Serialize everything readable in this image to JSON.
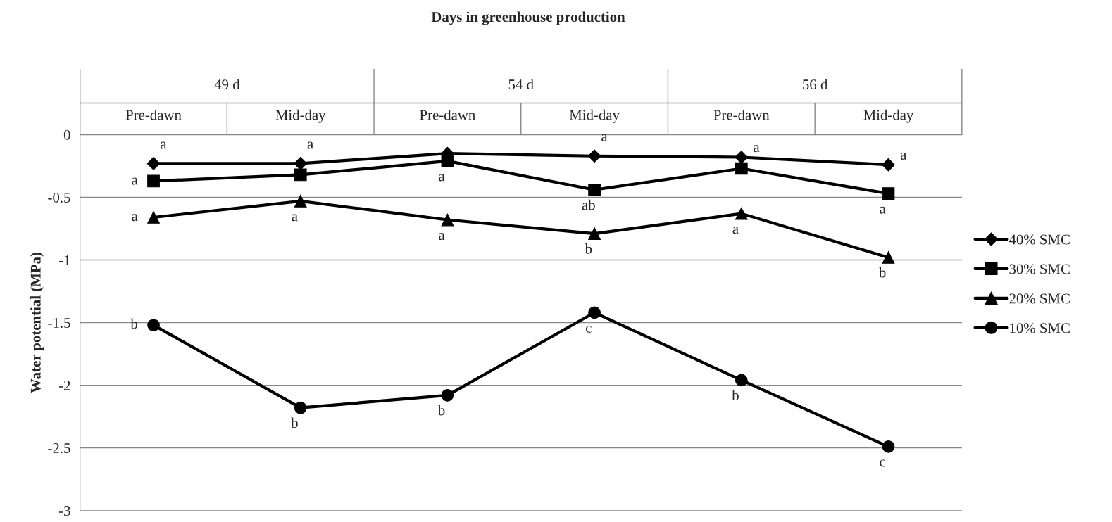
{
  "chart_data": {
    "type": "line",
    "title": "Days in greenhouse production",
    "ylabel": "Water potential (MPa)",
    "categories": [
      "Pre-dawn",
      "Mid-day",
      "Pre-dawn",
      "Mid-day",
      "Pre-dawn",
      "Mid-day"
    ],
    "annotations": [
      "49 d",
      "54 d",
      "56 d"
    ],
    "series": [
      {
        "name": "40% SMC",
        "color": "#000000",
        "marker": "diamond",
        "values": [
          -0.23,
          -0.23,
          -0.15,
          -0.17,
          -0.18,
          -0.24
        ],
        "value_labels": [
          "a",
          "a",
          null,
          "a",
          "a",
          "a"
        ]
      },
      {
        "name": "30% SMC",
        "color": "#000000",
        "marker": "square",
        "values": [
          -0.37,
          -0.32,
          -0.21,
          -0.44,
          -0.27,
          -0.47
        ],
        "value_labels": [
          "a",
          null,
          "a",
          "ab",
          null,
          "a"
        ]
      },
      {
        "name": "20% SMC",
        "color": "#000000",
        "marker": "triangle",
        "values": [
          -0.66,
          -0.53,
          -0.68,
          -0.79,
          -0.63,
          -0.98
        ],
        "value_labels": [
          "a",
          "a",
          "a",
          "b",
          "a",
          "b"
        ]
      },
      {
        "name": "10% SMC",
        "color": "#000000",
        "marker": "circle",
        "values": [
          -1.52,
          -2.18,
          -2.08,
          -1.42,
          -1.96,
          -2.49
        ],
        "value_labels": [
          "b",
          "b",
          "b",
          "c",
          "b",
          "c"
        ]
      }
    ],
    "ylim": [
      -3,
      0
    ],
    "yticks": [
      -3,
      -2.5,
      -2,
      -1.5,
      -1,
      -0.5,
      0
    ],
    "grid": "y",
    "legend": "right",
    "line_style": "solid"
  }
}
